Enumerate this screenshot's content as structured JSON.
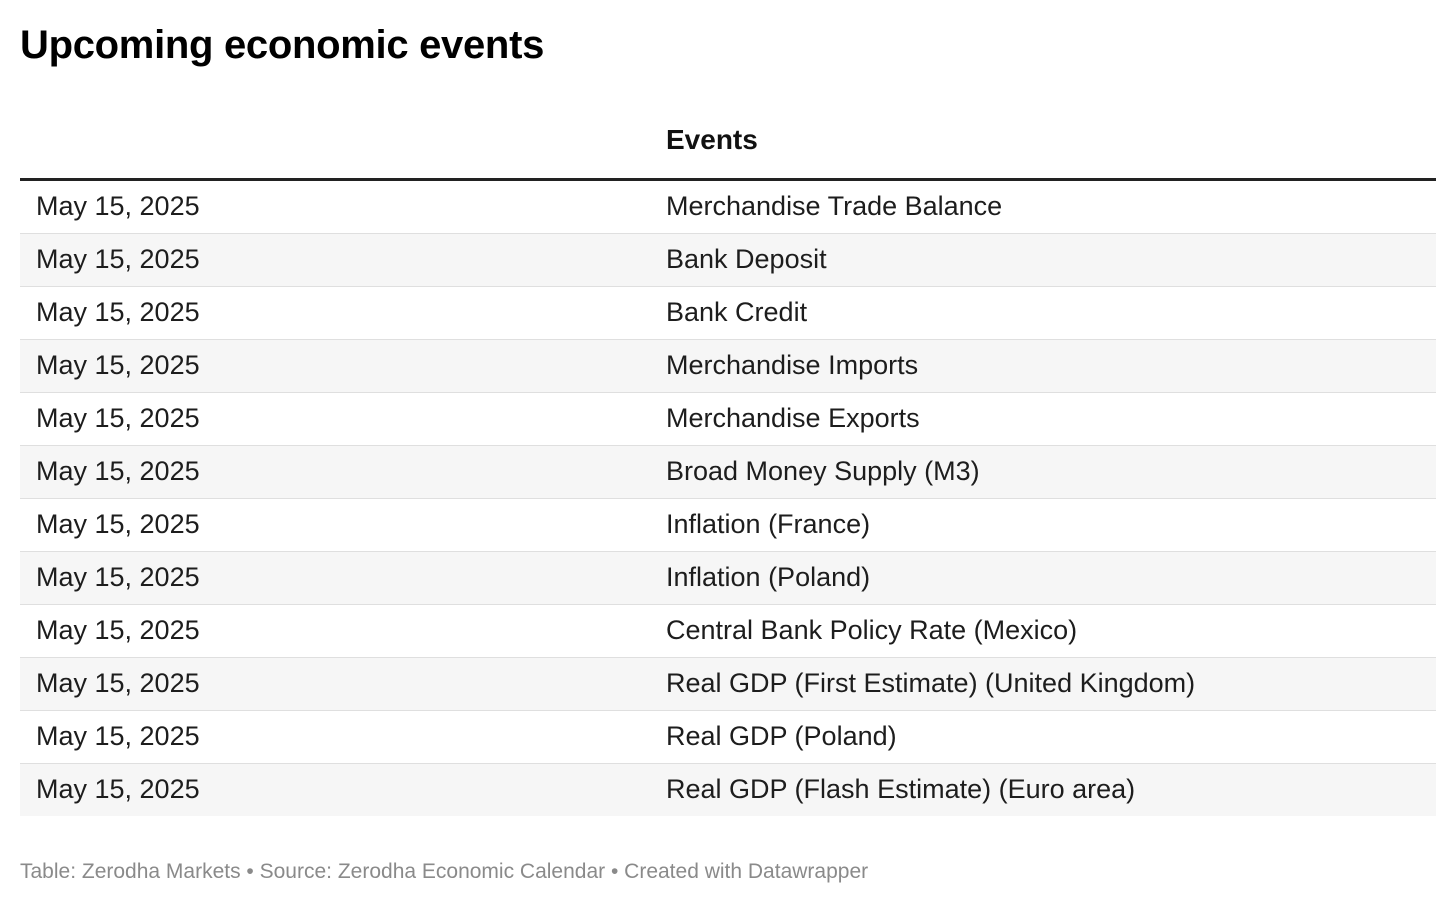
{
  "title": "Upcoming economic events",
  "table": {
    "headers": [
      "",
      "Events"
    ],
    "rows": [
      {
        "date": "May 15, 2025",
        "event": "Merchandise Trade Balance"
      },
      {
        "date": "May 15, 2025",
        "event": "Bank Deposit"
      },
      {
        "date": "May 15, 2025",
        "event": "Bank Credit"
      },
      {
        "date": "May 15, 2025",
        "event": "Merchandise Imports"
      },
      {
        "date": "May 15, 2025",
        "event": "Merchandise Exports"
      },
      {
        "date": "May 15, 2025",
        "event": "Broad Money Supply (M3)"
      },
      {
        "date": "May 15, 2025",
        "event": "Inflation (France)"
      },
      {
        "date": "May 15, 2025",
        "event": "Inflation (Poland)"
      },
      {
        "date": "May 15, 2025",
        "event": "Central Bank Policy Rate (Mexico)"
      },
      {
        "date": "May 15, 2025",
        "event": "Real GDP (First Estimate) (United Kingdom)"
      },
      {
        "date": "May 15, 2025",
        "event": "Real GDP (Poland)"
      },
      {
        "date": "May 15, 2025",
        "event": "Real GDP (Flash Estimate) (Euro area)"
      }
    ]
  },
  "footer": "Table: Zerodha Markets • Source: Zerodha Economic Calendar • Created with Datawrapper",
  "colors": {
    "header_rule": "#222222",
    "row_alt": "#f6f6f6",
    "row_divider": "#dfdfdf",
    "footer_text": "#8a8a8a"
  }
}
